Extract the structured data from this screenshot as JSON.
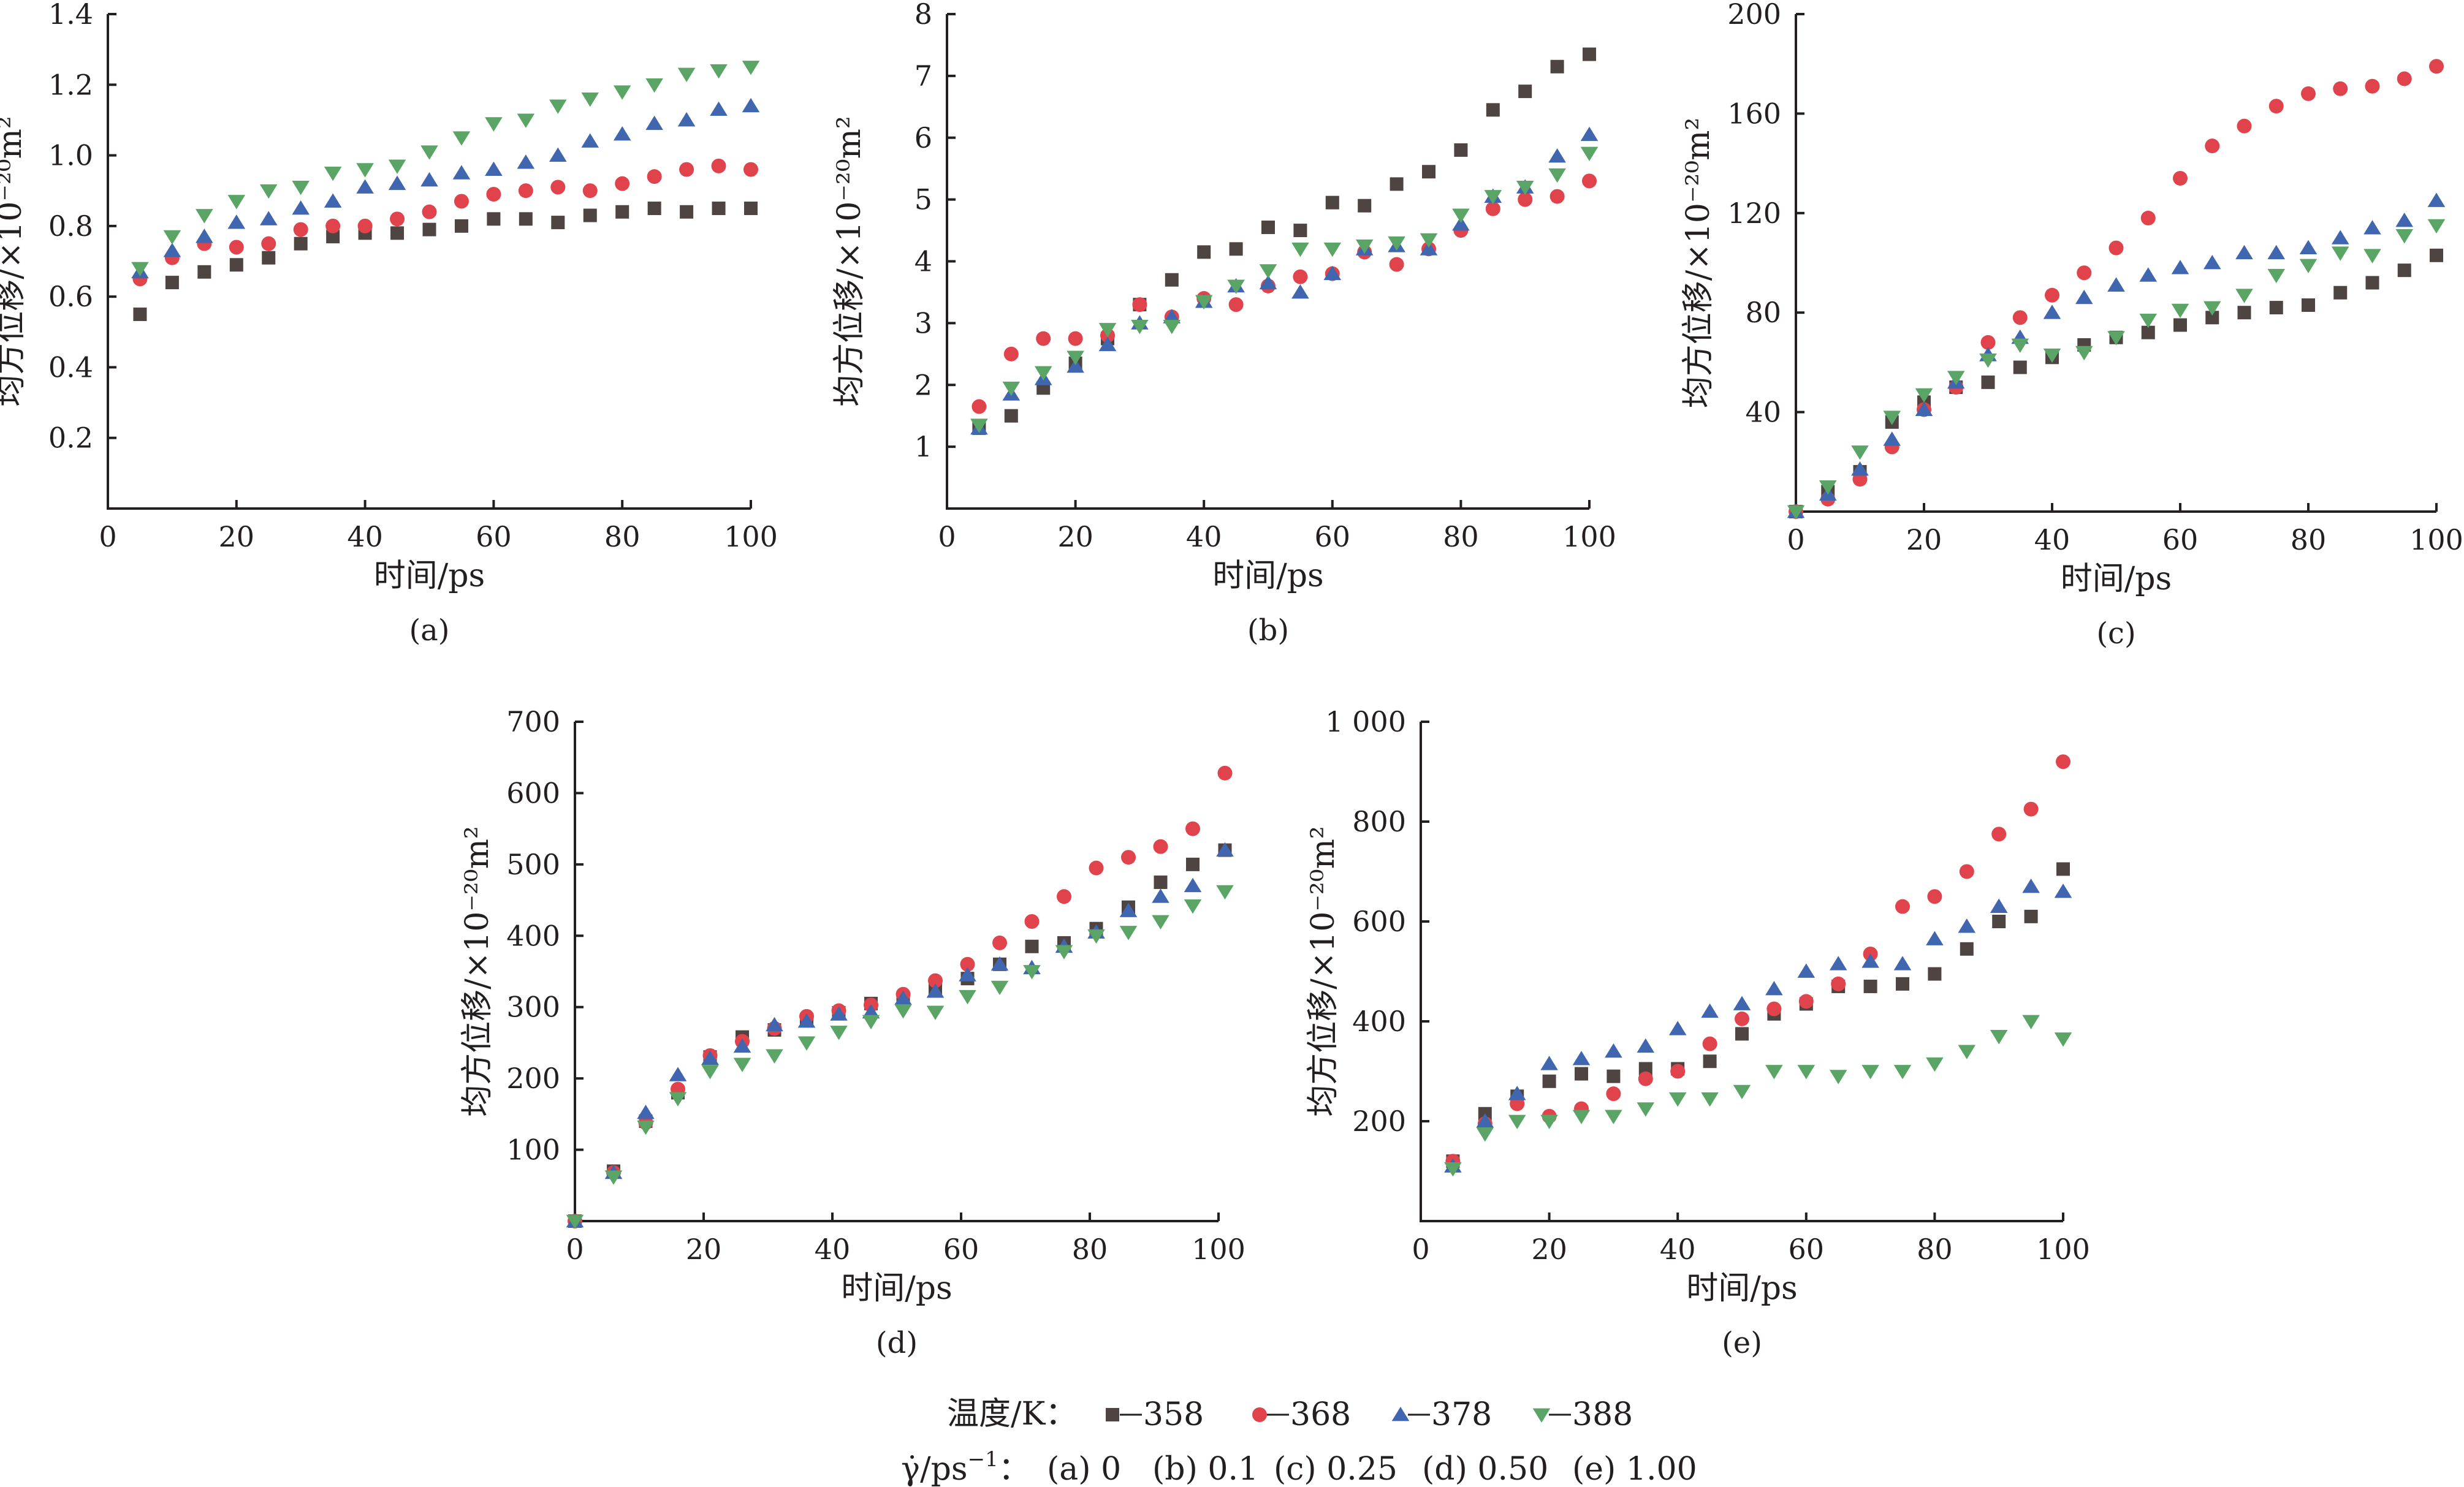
{
  "legend": {
    "temp_label": "温度/K：",
    "series": [
      {
        "name": "358",
        "marker": "square",
        "color": "#4e4442"
      },
      {
        "name": "368",
        "marker": "circle",
        "color": "#e0434b"
      },
      {
        "name": "378",
        "marker": "triangle-up",
        "color": "#3f66ae"
      },
      {
        "name": "388",
        "marker": "triangle-down",
        "color": "#5aa565"
      }
    ],
    "rate_symbol": "γ̇",
    "rate_unit": "/ps",
    "rate_exp": "−1",
    "rate_sep": "：",
    "rates": [
      "(a) 0",
      "(b) 0.1",
      "(c) 0.25",
      "(d) 0.50",
      "(e) 1.00"
    ]
  },
  "chart_data": [
    {
      "type": "scatter",
      "panel": "(a)",
      "xlabel": "时间/ps",
      "ylabel": "均方位移/×10⁻²⁰m²",
      "xlim": [
        0,
        100
      ],
      "ylim": [
        0,
        1.4
      ],
      "xticks": [
        "0",
        "20",
        "40",
        "60",
        "80",
        "100"
      ],
      "yticks": [
        "0.2",
        "0.4",
        "0.6",
        "0.8",
        "1.0",
        "1.2",
        "1.4"
      ],
      "yticks_values": [
        0.2,
        0.4,
        0.6,
        0.8,
        1.0,
        1.2,
        1.4
      ],
      "x": [
        5,
        10,
        15,
        20,
        25,
        30,
        35,
        40,
        45,
        50,
        55,
        60,
        65,
        70,
        75,
        80,
        85,
        90,
        95,
        100
      ],
      "series": [
        {
          "name": "358",
          "values": [
            0.55,
            0.64,
            0.67,
            0.69,
            0.71,
            0.75,
            0.77,
            0.78,
            0.78,
            0.79,
            0.8,
            0.82,
            0.82,
            0.81,
            0.83,
            0.84,
            0.85,
            0.84,
            0.85,
            0.85
          ]
        },
        {
          "name": "368",
          "values": [
            0.65,
            0.71,
            0.75,
            0.74,
            0.75,
            0.79,
            0.8,
            0.8,
            0.82,
            0.84,
            0.87,
            0.89,
            0.9,
            0.91,
            0.9,
            0.92,
            0.94,
            0.96,
            0.97,
            0.96
          ]
        },
        {
          "name": "378",
          "values": [
            0.67,
            0.73,
            0.77,
            0.81,
            0.82,
            0.85,
            0.87,
            0.91,
            0.92,
            0.93,
            0.95,
            0.96,
            0.98,
            1.0,
            1.04,
            1.06,
            1.09,
            1.1,
            1.13,
            1.14
          ]
        },
        {
          "name": "388",
          "values": [
            0.68,
            0.77,
            0.83,
            0.87,
            0.9,
            0.91,
            0.95,
            0.96,
            0.97,
            1.01,
            1.05,
            1.09,
            1.1,
            1.14,
            1.16,
            1.18,
            1.2,
            1.23,
            1.24,
            1.25
          ]
        }
      ]
    },
    {
      "type": "scatter",
      "panel": "(b)",
      "xlabel": "时间/ps",
      "ylabel": "均方位移/×10⁻²⁰m²",
      "xlim": [
        0,
        100
      ],
      "ylim": [
        0,
        8
      ],
      "xticks": [
        "0",
        "20",
        "40",
        "60",
        "80",
        "100"
      ],
      "yticks": [
        "1",
        "2",
        "3",
        "4",
        "5",
        "6",
        "7",
        "8"
      ],
      "yticks_values": [
        1,
        2,
        3,
        4,
        5,
        6,
        7,
        8
      ],
      "x": [
        5,
        10,
        15,
        20,
        25,
        30,
        35,
        40,
        45,
        50,
        55,
        60,
        65,
        70,
        75,
        80,
        85,
        90,
        95,
        100
      ],
      "series": [
        {
          "name": "358",
          "values": [
            1.3,
            1.5,
            1.95,
            2.35,
            2.75,
            3.3,
            3.7,
            4.15,
            4.2,
            4.55,
            4.5,
            4.95,
            4.9,
            5.25,
            5.45,
            5.8,
            6.45,
            6.75,
            7.15,
            7.35
          ]
        },
        {
          "name": "368",
          "values": [
            1.65,
            2.5,
            2.75,
            2.75,
            2.8,
            3.3,
            3.1,
            3.4,
            3.3,
            3.6,
            3.75,
            3.8,
            4.15,
            3.95,
            4.2,
            4.5,
            4.85,
            5.0,
            5.05,
            5.3
          ]
        },
        {
          "name": "378",
          "values": [
            1.3,
            1.85,
            2.1,
            2.3,
            2.65,
            3.0,
            3.1,
            3.35,
            3.6,
            3.65,
            3.5,
            3.8,
            4.2,
            4.25,
            4.2,
            4.6,
            5.05,
            5.2,
            5.7,
            6.05
          ]
        },
        {
          "name": "388",
          "values": [
            1.35,
            1.95,
            2.2,
            2.45,
            2.9,
            2.95,
            2.95,
            3.35,
            3.6,
            3.85,
            4.2,
            4.2,
            4.25,
            4.3,
            4.35,
            4.75,
            5.05,
            5.2,
            5.4,
            5.75
          ]
        }
      ]
    },
    {
      "type": "scatter",
      "panel": "(c)",
      "xlabel": "时间/ps",
      "ylabel": "均方位移/×10⁻²⁰m²",
      "xlim": [
        0,
        100
      ],
      "ylim": [
        0,
        200
      ],
      "xticks": [
        "0",
        "20",
        "40",
        "60",
        "80",
        "100"
      ],
      "yticks": [
        "40",
        "80",
        "120",
        "160",
        "200"
      ],
      "yticks_values": [
        40,
        80,
        120,
        160,
        200
      ],
      "x": [
        0,
        5,
        10,
        15,
        20,
        25,
        30,
        35,
        40,
        45,
        50,
        55,
        60,
        65,
        70,
        75,
        80,
        85,
        90,
        95,
        100
      ],
      "series": [
        {
          "name": "358",
          "values": [
            0,
            8,
            16,
            36,
            44,
            50,
            52,
            58,
            62,
            67,
            70,
            72,
            75,
            78,
            80,
            82,
            83,
            88,
            92,
            97,
            103
          ]
        },
        {
          "name": "368",
          "values": [
            0,
            5,
            13,
            26,
            41,
            50,
            68,
            78,
            87,
            96,
            106,
            118,
            134,
            147,
            155,
            163,
            168,
            170,
            171,
            174,
            179
          ]
        },
        {
          "name": "378",
          "values": [
            0,
            7,
            17,
            29,
            41,
            52,
            63,
            70,
            80,
            86,
            91,
            95,
            98,
            100,
            104,
            104,
            106,
            110,
            114,
            117,
            125
          ]
        },
        {
          "name": "388",
          "values": [
            0,
            10,
            24,
            38,
            47,
            54,
            61,
            67,
            63,
            64,
            70,
            77,
            81,
            82,
            87,
            95,
            99,
            104,
            103,
            111,
            115
          ]
        }
      ]
    },
    {
      "type": "scatter",
      "panel": "(d)",
      "xlabel": "时间/ps",
      "ylabel": "均方位移/×10⁻²⁰m²",
      "xlim": [
        0,
        100
      ],
      "ylim": [
        0,
        700
      ],
      "xticks": [
        "0",
        "20",
        "40",
        "60",
        "80",
        "100"
      ],
      "yticks": [
        "100",
        "200",
        "300",
        "400",
        "500",
        "600",
        "700"
      ],
      "yticks_values": [
        100,
        200,
        300,
        400,
        500,
        600,
        700
      ],
      "x": [
        0,
        6,
        11,
        16,
        21,
        26,
        31,
        36,
        41,
        46,
        51,
        56,
        61,
        66,
        71,
        76,
        81,
        86,
        91,
        96,
        101
      ],
      "series": [
        {
          "name": "358",
          "values": [
            0,
            70,
            140,
            180,
            230,
            258,
            268,
            282,
            292,
            305,
            312,
            325,
            340,
            360,
            385,
            390,
            410,
            440,
            475,
            500,
            520
          ]
        },
        {
          "name": "368",
          "values": [
            0,
            68,
            138,
            185,
            232,
            252,
            270,
            287,
            295,
            303,
            318,
            337,
            360,
            390,
            420,
            455,
            495,
            510,
            525,
            550,
            628
          ]
        },
        {
          "name": "378",
          "values": [
            0,
            68,
            152,
            205,
            228,
            245,
            275,
            280,
            290,
            293,
            312,
            322,
            345,
            360,
            355,
            385,
            405,
            435,
            455,
            470,
            520
          ]
        },
        {
          "name": "388",
          "values": [
            0,
            62,
            132,
            172,
            210,
            220,
            232,
            250,
            265,
            280,
            295,
            293,
            315,
            328,
            350,
            378,
            400,
            405,
            420,
            442,
            462
          ]
        }
      ]
    },
    {
      "type": "scatter",
      "panel": "(e)",
      "xlabel": "时间/ps",
      "ylabel": "均方位移/×10⁻²⁰m²",
      "xlim": [
        0,
        100
      ],
      "ylim": [
        0,
        1000
      ],
      "xticks": [
        "0",
        "20",
        "40",
        "60",
        "80",
        "100"
      ],
      "yticks": [
        "200",
        "400",
        "600",
        "800",
        "1 000"
      ],
      "yticks_values": [
        200,
        400,
        600,
        800,
        1000
      ],
      "x": [
        5,
        10,
        15,
        20,
        25,
        30,
        35,
        40,
        45,
        50,
        55,
        60,
        65,
        70,
        75,
        80,
        85,
        90,
        95,
        100
      ],
      "series": [
        {
          "name": "358",
          "values": [
            120,
            215,
            250,
            280,
            295,
            290,
            305,
            305,
            320,
            375,
            415,
            435,
            470,
            470,
            475,
            495,
            545,
            600,
            610,
            705
          ]
        },
        {
          "name": "368",
          "values": [
            120,
            195,
            235,
            210,
            225,
            255,
            285,
            300,
            355,
            405,
            425,
            440,
            475,
            535,
            630,
            650,
            700,
            775,
            825,
            920
          ]
        },
        {
          "name": "378",
          "values": [
            110,
            200,
            255,
            315,
            325,
            340,
            350,
            385,
            420,
            435,
            465,
            500,
            515,
            520,
            515,
            565,
            590,
            630,
            670,
            660
          ]
        },
        {
          "name": "388",
          "values": [
            105,
            175,
            200,
            200,
            210,
            210,
            225,
            245,
            245,
            260,
            300,
            300,
            290,
            300,
            300,
            315,
            340,
            370,
            400,
            365
          ]
        }
      ]
    }
  ]
}
